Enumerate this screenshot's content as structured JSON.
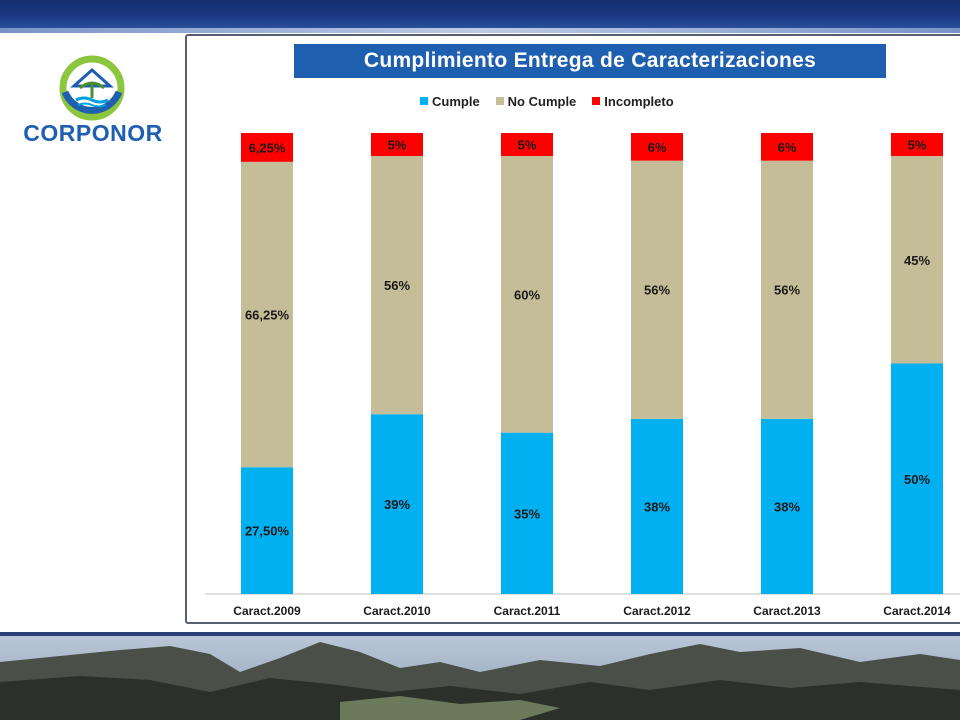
{
  "header": {
    "logo_text": "CORPONOR"
  },
  "chart_data": {
    "type": "bar",
    "stacked": true,
    "percent_stacked": true,
    "title": "Cumplimiento Entrega de Caracterizaciones",
    "categories": [
      "Caract.2009",
      "Caract.2010",
      "Caract.2011",
      "Caract.2012",
      "Caract.2013",
      "Caract.2014"
    ],
    "series": [
      {
        "name": "Cumple",
        "color": "#00b0f0",
        "values": [
          27.5,
          39,
          35,
          38,
          38,
          50
        ],
        "labels": [
          "27,50%",
          "39%",
          "35%",
          "38%",
          "38%",
          "50%"
        ]
      },
      {
        "name": "No Cumple",
        "color": "#c4bd97",
        "values": [
          66.25,
          56,
          60,
          56,
          56,
          45
        ],
        "labels": [
          "66,25%",
          "56%",
          "60%",
          "56%",
          "56%",
          "45%"
        ]
      },
      {
        "name": "Incompleto",
        "color": "#ff0000",
        "values": [
          6.25,
          5,
          5,
          6,
          6,
          5
        ],
        "labels": [
          "6,25%",
          "5%",
          "5%",
          "6%",
          "6%",
          "5%"
        ]
      }
    ],
    "legend_position": "top",
    "grid": false
  }
}
